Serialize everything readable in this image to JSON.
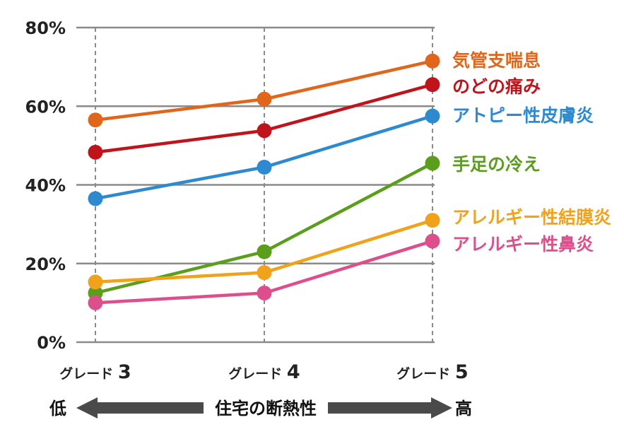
{
  "chart_data": {
    "type": "line",
    "categories": [
      "グレード 3",
      "グレード 4",
      "グレード 5"
    ],
    "category_parts": [
      {
        "prefix": "グレード",
        "num": "3"
      },
      {
        "prefix": "グレード",
        "num": "4"
      },
      {
        "prefix": "グレード",
        "num": "5"
      }
    ],
    "ylim": [
      0,
      80
    ],
    "yticks": [
      0,
      20,
      40,
      60,
      80
    ],
    "ytick_labels": [
      "0%",
      "20%",
      "40%",
      "60%",
      "80%"
    ],
    "grid": true,
    "legend": "inline-right",
    "series": [
      {
        "name": "気管支喘息",
        "color": "#e0661c",
        "values": [
          56.5,
          61.8,
          71.5
        ]
      },
      {
        "name": "のどの痛み",
        "color": "#c0141c",
        "values": [
          48.3,
          53.8,
          65.5
        ]
      },
      {
        "name": "アトピー性皮膚炎",
        "color": "#2d8ad0",
        "values": [
          36.5,
          44.5,
          57.5
        ]
      },
      {
        "name": "手足の冷え",
        "color": "#5a9e1c",
        "values": [
          12.5,
          23.0,
          45.5
        ]
      },
      {
        "name": "アレルギー性結膜炎",
        "color": "#f0a21a",
        "values": [
          15.3,
          17.7,
          31.0
        ]
      },
      {
        "name": "アレルギー性鼻炎",
        "color": "#dd4f8c",
        "values": [
          10.0,
          12.5,
          25.7
        ]
      }
    ],
    "xlabel": "住宅の断熱性",
    "x_low_label": "低",
    "x_high_label": "高"
  }
}
